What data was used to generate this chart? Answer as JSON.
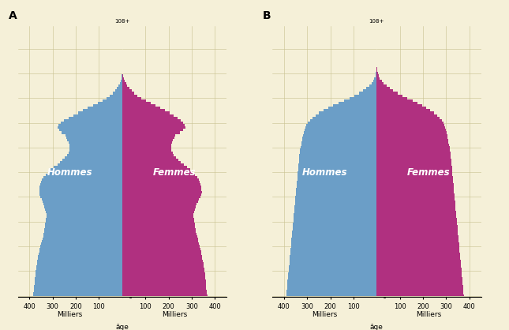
{
  "background_color": "#f5f0d8",
  "axes_background": "#f5f0d8",
  "male_color": "#6b9ec7",
  "female_color": "#b03080",
  "grid_color": "#c8c090",
  "text_color": "white",
  "panel_A_label": "A",
  "panel_B_label": "B",
  "xlabel_male": "Milliers",
  "xlabel_female": "Milliers",
  "ylabel_center": "âge",
  "ytop_label": "108+",
  "ages_2012_male": [
    385,
    383,
    381,
    380,
    379,
    378,
    377,
    376,
    375,
    374,
    373,
    371,
    370,
    368,
    366,
    364,
    362,
    360,
    358,
    355,
    352,
    349,
    346,
    344,
    341,
    338,
    336,
    335,
    333,
    332,
    330,
    328,
    326,
    326,
    328,
    332,
    336,
    340,
    344,
    348,
    352,
    356,
    358,
    357,
    356,
    354,
    350,
    345,
    338,
    330,
    320,
    308,
    295,
    280,
    268,
    258,
    248,
    238,
    232,
    228,
    226,
    228,
    232,
    236,
    240,
    244,
    260,
    272,
    278,
    274,
    264,
    250,
    232,
    212,
    190,
    170,
    148,
    126,
    105,
    86,
    68,
    53,
    40,
    30,
    22,
    16,
    11,
    7,
    4,
    2,
    1,
    0,
    0,
    0,
    0,
    0,
    0,
    0,
    0,
    0,
    0,
    0,
    0,
    0,
    0,
    0,
    0,
    0,
    0
  ],
  "ages_2012_female": [
    368,
    366,
    364,
    363,
    362,
    361,
    360,
    359,
    358,
    357,
    356,
    354,
    352,
    350,
    348,
    346,
    344,
    342,
    340,
    337,
    334,
    331,
    328,
    326,
    323,
    320,
    318,
    317,
    315,
    314,
    312,
    310,
    308,
    308,
    310,
    314,
    318,
    322,
    327,
    332,
    337,
    341,
    344,
    342,
    341,
    339,
    335,
    330,
    323,
    315,
    305,
    293,
    280,
    265,
    253,
    243,
    233,
    223,
    217,
    213,
    210,
    212,
    216,
    220,
    225,
    230,
    248,
    262,
    272,
    270,
    263,
    252,
    238,
    222,
    204,
    185,
    165,
    143,
    122,
    102,
    84,
    67,
    52,
    40,
    30,
    22,
    16,
    11,
    7,
    4,
    2,
    1,
    0,
    0,
    0,
    0,
    0,
    0,
    0,
    0,
    0,
    0,
    0,
    0,
    0,
    0,
    0,
    0,
    0
  ],
  "ages_2060_male": [
    390,
    389,
    388,
    387,
    386,
    385,
    384,
    383,
    382,
    381,
    380,
    379,
    378,
    377,
    376,
    375,
    374,
    373,
    372,
    371,
    370,
    369,
    368,
    367,
    366,
    365,
    364,
    363,
    362,
    361,
    360,
    359,
    358,
    357,
    356,
    355,
    354,
    353,
    352,
    351,
    350,
    349,
    348,
    347,
    346,
    345,
    344,
    343,
    342,
    341,
    340,
    339,
    338,
    337,
    336,
    335,
    334,
    333,
    332,
    330,
    328,
    326,
    324,
    322,
    320,
    318,
    315,
    312,
    308,
    303,
    296,
    287,
    276,
    263,
    248,
    230,
    210,
    188,
    165,
    142,
    118,
    96,
    76,
    59,
    44,
    32,
    23,
    16,
    10,
    6,
    3,
    2,
    1,
    0,
    0,
    0,
    0,
    0,
    0,
    0,
    0,
    0,
    0,
    0,
    0,
    0,
    0,
    0,
    0
  ],
  "ages_2060_female": [
    376,
    375,
    374,
    373,
    372,
    371,
    370,
    369,
    368,
    367,
    366,
    365,
    364,
    363,
    362,
    361,
    360,
    359,
    358,
    357,
    356,
    355,
    354,
    353,
    352,
    351,
    350,
    349,
    348,
    347,
    346,
    345,
    344,
    343,
    342,
    341,
    340,
    339,
    338,
    337,
    336,
    335,
    334,
    333,
    332,
    331,
    330,
    329,
    328,
    327,
    326,
    325,
    324,
    323,
    322,
    321,
    320,
    319,
    318,
    316,
    314,
    312,
    310,
    308,
    306,
    304,
    302,
    299,
    296,
    292,
    287,
    280,
    271,
    260,
    247,
    232,
    215,
    196,
    176,
    154,
    132,
    111,
    90,
    72,
    56,
    42,
    31,
    22,
    14,
    9,
    5,
    3,
    1,
    0,
    0,
    0,
    0,
    0,
    0,
    0,
    0,
    0,
    0,
    0,
    0,
    0,
    0,
    0,
    0
  ],
  "x_max": 450,
  "y_max": 109,
  "y_ticks": [
    0,
    10,
    20,
    30,
    40,
    50,
    60,
    70,
    80,
    90,
    100
  ]
}
